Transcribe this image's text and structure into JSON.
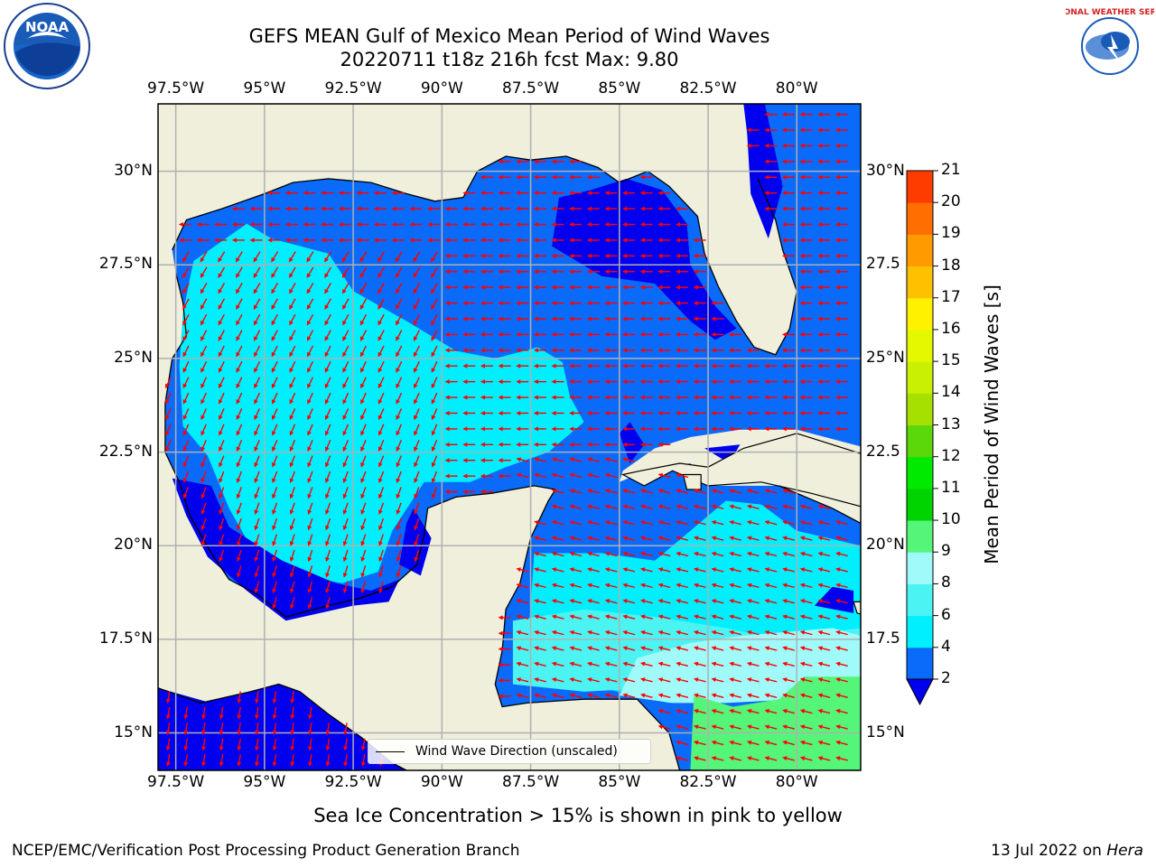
{
  "title_line1": "GEFS MEAN Gulf of Mexico Mean Period of Wind Waves",
  "title_line2": "20220711 t18z 216h fcst   Max: 9.80",
  "lon_ticks": [
    "97.5°W",
    "95°W",
    "92.5°W",
    "90°W",
    "87.5°W",
    "85°W",
    "82.5°W",
    "80°W"
  ],
  "lon_values": [
    -97.5,
    -95,
    -92.5,
    -90,
    -87.5,
    -85,
    -82.5,
    -80
  ],
  "lat_ticks_left": [
    "30°N",
    "27.5°N",
    "25°N",
    "22.5°N",
    "20°N",
    "17.5°N",
    "15°N"
  ],
  "lat_ticks_right": [
    "30°N",
    "27.5",
    "25°N",
    "22.5",
    "20°N",
    "17.5",
    "15°N"
  ],
  "lat_values": [
    30,
    27.5,
    25,
    22.5,
    20,
    17.5,
    15
  ],
  "map_extent": {
    "lon": [
      -98,
      -78.2
    ],
    "lat": [
      14,
      31.8
    ]
  },
  "colorbar": {
    "label": "Mean Period of Wind Waves [s]",
    "ticks": [
      "2",
      "4",
      "6",
      "8",
      "9",
      "10",
      "11",
      "12",
      "13",
      "14",
      "15",
      "16",
      "17",
      "18",
      "19",
      "20",
      "21"
    ],
    "levels": [
      2,
      4,
      6,
      8,
      9,
      10,
      11,
      12,
      13,
      14,
      15,
      16,
      17,
      18,
      19,
      20,
      21
    ],
    "colors": [
      "#0a6af9",
      "#00efff",
      "#4cf3f3",
      "#a0fafa",
      "#55f57a",
      "#00d400",
      "#00ea00",
      "#5ad80a",
      "#a5e000",
      "#c8f000",
      "#e6f800",
      "#fff100",
      "#ffc000",
      "#ff9a00",
      "#ff6e00",
      "#ff3c00",
      "#ff0000"
    ],
    "extend_color": "#0000ee"
  },
  "fill_colors": {
    "land": "#efefdc",
    "period_0_2": "#0000ee",
    "period_2_4": "#0a6af9",
    "period_4_6": "#00efff",
    "period_6_8": "#4cf3f3",
    "period_8_9": "#a0fafa",
    "period_9_10": "#55f57a"
  },
  "vector_color": "#ff0000",
  "legend_label": "Wind Wave Direction (unscaled)",
  "footer_note": "Sea Ice Concentration > 15% is shown in pink to yellow",
  "footer_left": "NCEP/EMC/Verification Post Processing Product Generation Branch",
  "footer_date": "13 Jul 2022 on",
  "footer_machine": "Hera",
  "logo_left": "NOAA",
  "logo_right": "NATIONAL WEATHER SERVICE"
}
